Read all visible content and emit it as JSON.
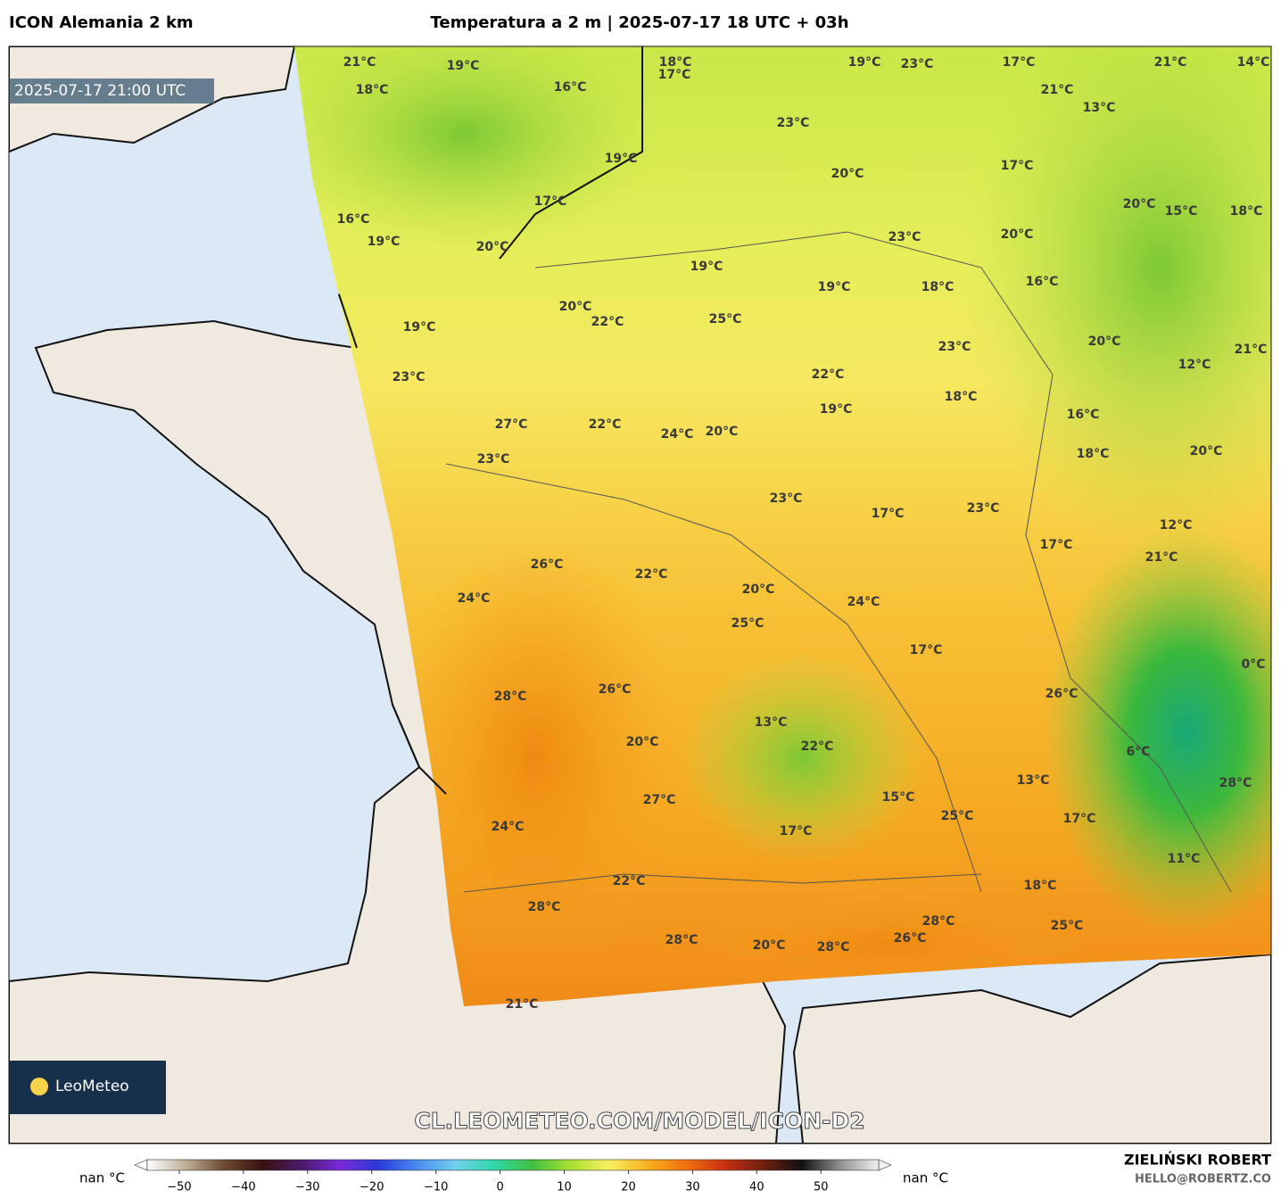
{
  "header": {
    "model": "ICON Alemania 2 km",
    "title": "Temperatura a 2 m | 2025-07-17 18 UTC + 03h"
  },
  "map": {
    "valid_time": "2025-07-17 21:00 UTC",
    "labels": [
      "21°C",
      "19°C",
      "18°C",
      "17°C",
      "19°C",
      "23°C",
      "17°C",
      "21°C",
      "14°C",
      "18°C",
      "16°C",
      "21°C",
      "13°C",
      "23°C",
      "19°C",
      "20°C",
      "17°C",
      "17°C",
      "20°C",
      "15°C",
      "18°C",
      "16°C",
      "19°C",
      "20°C",
      "23°C",
      "20°C",
      "19°C",
      "19°C",
      "18°C",
      "16°C",
      "20°C",
      "22°C",
      "25°C",
      "19°C",
      "23°C",
      "20°C",
      "21°C",
      "12°C",
      "23°C",
      "22°C",
      "18°C",
      "19°C",
      "16°C",
      "27°C",
      "22°C",
      "24°C",
      "20°C",
      "23°C",
      "18°C",
      "20°C",
      "23°C",
      "17°C",
      "23°C",
      "12°C",
      "17°C",
      "21°C",
      "26°C",
      "22°C",
      "20°C",
      "24°C",
      "24°C",
      "25°C",
      "17°C",
      "0°C",
      "28°C",
      "26°C",
      "26°C",
      "13°C",
      "20°C",
      "22°C",
      "6°C",
      "13°C",
      "28°C",
      "27°C",
      "15°C",
      "25°C",
      "17°C",
      "24°C",
      "17°C",
      "11°C",
      "22°C",
      "18°C",
      "28°C",
      "28°C",
      "25°C",
      "28°C",
      "26°C",
      "20°C",
      "28°C",
      "21°C"
    ],
    "watermark": "CL.LEOMETEO.COM/MODEL/ICON-D2",
    "logo": "LeoMeteo"
  },
  "colorbar": {
    "nan_left": "nan °C",
    "nan_right": "nan °C",
    "lim": [
      -55,
      59
    ],
    "colors": [
      "#ffffff",
      "#bfae96",
      "#6b4a30",
      "#3a1010",
      "#4a1a6a",
      "#7a2ad8",
      "#2a3ad8",
      "#4a8af0",
      "#70d0f0",
      "#30d8a8",
      "#40c040",
      "#a8e030",
      "#f8f060",
      "#f8b020",
      "#f07010",
      "#c83010",
      "#702010",
      "#101010",
      "#909090",
      "#f0f0f0"
    ],
    "ticks": [
      {
        "value": -50,
        "label": "−50"
      },
      {
        "value": -40,
        "label": "−40"
      },
      {
        "value": -30,
        "label": "−30"
      },
      {
        "value": -20,
        "label": "−20"
      },
      {
        "value": -10,
        "label": "−10"
      },
      0,
      10,
      20,
      30,
      40,
      50
    ]
  },
  "footer": {
    "author": "ZIELIŃSKI ROBERT",
    "email": "HELLO@ROBERTZ.CO"
  }
}
